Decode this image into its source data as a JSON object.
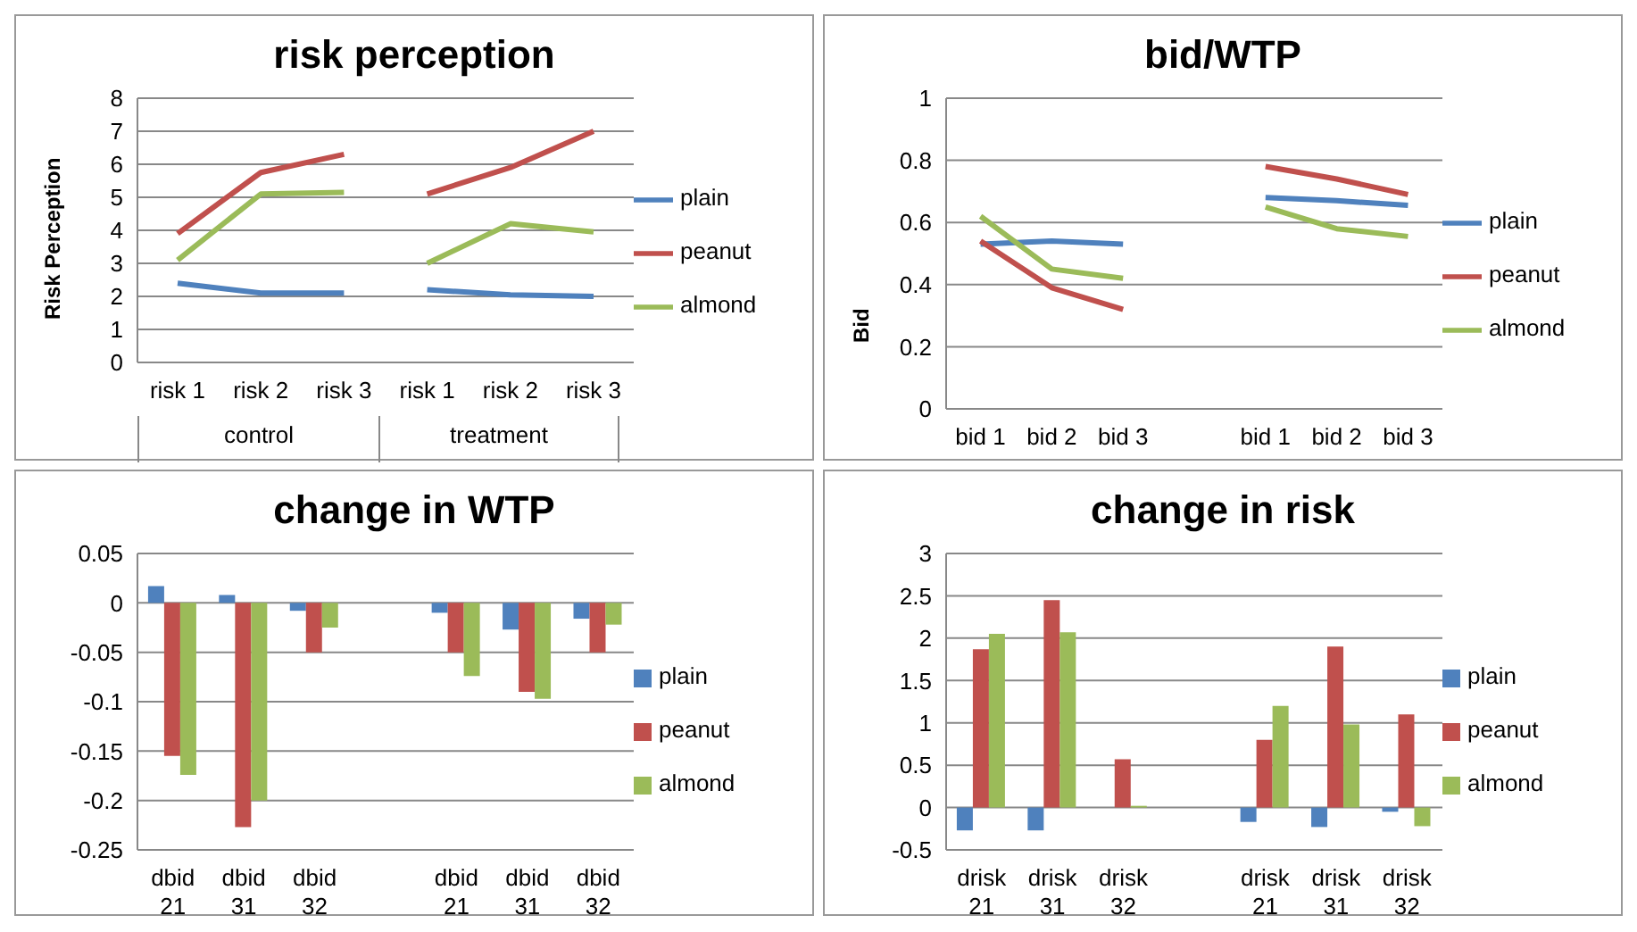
{
  "chart_data": [
    {
      "type": "line",
      "title": "risk perception",
      "ylabel": "Risk Perception",
      "categories": [
        "risk 1",
        "risk 2",
        "risk 3",
        "risk 1",
        "risk 2",
        "risk 3"
      ],
      "annotations": [
        "control",
        "treatment"
      ],
      "ylim": [
        0,
        8
      ],
      "yticks": [
        0,
        1,
        2,
        3,
        4,
        5,
        6,
        7,
        8
      ],
      "grid": "y",
      "legend": "right",
      "series": [
        {
          "name": "plain",
          "color": "#4f81bd",
          "values": [
            2.4,
            2.1,
            2.1,
            2.2,
            2.05,
            2.0
          ]
        },
        {
          "name": "peanut",
          "color": "#c0504d",
          "values": [
            3.9,
            5.75,
            6.3,
            5.1,
            5.9,
            7.0
          ]
        },
        {
          "name": "almond",
          "color": "#9bbb59",
          "values": [
            3.1,
            5.1,
            5.15,
            3.0,
            4.2,
            3.95
          ]
        }
      ]
    },
    {
      "type": "line",
      "title": "bid/WTP",
      "ylabel": "Bid",
      "categories": [
        "bid 1",
        "bid 2",
        "bid 3",
        null,
        "bid 1",
        "bid 2",
        "bid 3"
      ],
      "ylim": [
        0,
        1
      ],
      "yticks": [
        0,
        0.2,
        0.4,
        0.6,
        0.8,
        1
      ],
      "grid": "y",
      "legend": "right",
      "series": [
        {
          "name": "plain",
          "color": "#4f81bd",
          "values": [
            0.53,
            0.54,
            0.53,
            null,
            0.68,
            0.67,
            0.655
          ]
        },
        {
          "name": "peanut",
          "color": "#c0504d",
          "values": [
            0.54,
            0.39,
            0.32,
            null,
            0.78,
            0.74,
            0.69
          ]
        },
        {
          "name": "almond",
          "color": "#9bbb59",
          "values": [
            0.62,
            0.45,
            0.42,
            null,
            0.65,
            0.58,
            0.555
          ]
        }
      ]
    },
    {
      "type": "bar",
      "title": "change in WTP",
      "categories": [
        "dbid 21",
        "dbid 31",
        "dbid 32",
        null,
        "dbid 21",
        "dbid 31",
        "dbid 32"
      ],
      "ylim": [
        -0.25,
        0.05
      ],
      "yticks": [
        -0.25,
        -0.2,
        -0.15,
        -0.1,
        -0.05,
        0,
        0.05
      ],
      "grid": "y",
      "legend": "right",
      "series": [
        {
          "name": "plain",
          "color": "#4f81bd",
          "values": [
            0.017,
            0.008,
            -0.008,
            null,
            -0.01,
            -0.027,
            -0.016
          ]
        },
        {
          "name": "peanut",
          "color": "#c0504d",
          "values": [
            -0.155,
            -0.227,
            -0.05,
            null,
            -0.05,
            -0.09,
            -0.05
          ]
        },
        {
          "name": "almond",
          "color": "#9bbb59",
          "values": [
            -0.174,
            -0.2,
            -0.025,
            null,
            -0.074,
            -0.097,
            -0.022
          ]
        }
      ]
    },
    {
      "type": "bar",
      "title": "change in risk",
      "categories": [
        "drisk 21",
        "drisk 31",
        "drisk 32",
        null,
        "drisk 21",
        "drisk 31",
        "drisk 32"
      ],
      "ylim": [
        -0.5,
        3
      ],
      "yticks": [
        -0.5,
        0,
        0.5,
        1,
        1.5,
        2,
        2.5,
        3
      ],
      "grid": "y",
      "legend": "right",
      "series": [
        {
          "name": "plain",
          "color": "#4f81bd",
          "values": [
            -0.27,
            -0.27,
            0,
            null,
            -0.17,
            -0.23,
            -0.05
          ]
        },
        {
          "name": "peanut",
          "color": "#c0504d",
          "values": [
            1.87,
            2.45,
            0.57,
            null,
            0.8,
            1.9,
            1.1
          ]
        },
        {
          "name": "almond",
          "color": "#9bbb59",
          "values": [
            2.05,
            2.07,
            0.02,
            null,
            1.2,
            0.98,
            -0.22
          ]
        }
      ]
    }
  ]
}
